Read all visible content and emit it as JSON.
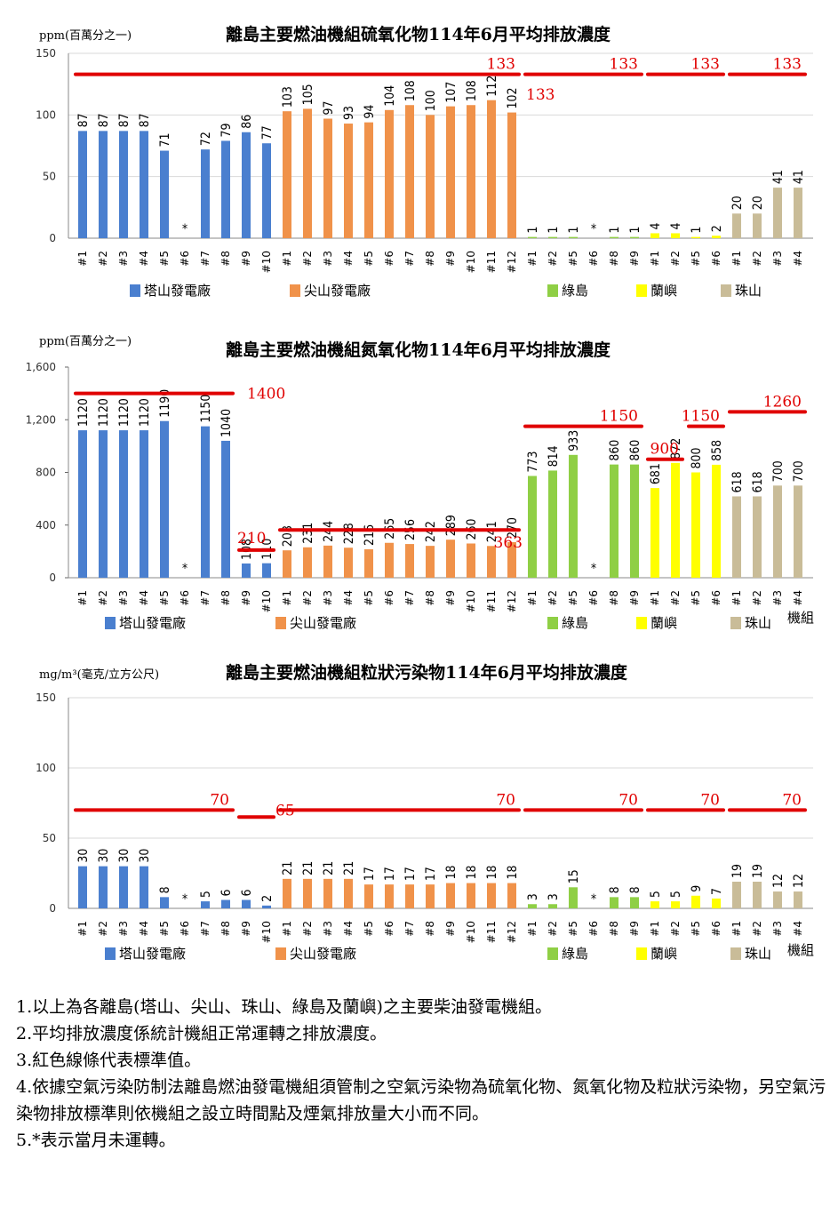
{
  "colors": {
    "tashan": "#4a7fcf",
    "jianshan": "#f0924a",
    "lyudao": "#8fcf45",
    "lanyu": "#ffff00",
    "zhushan": "#c9bc98",
    "limit": "#e00000"
  },
  "legend": [
    {
      "name": "塔山發電廠",
      "color": "#4a7fcf"
    },
    {
      "name": "尖山發電廠",
      "color": "#f0924a"
    },
    {
      "name": "綠島",
      "color": "#8fcf45"
    },
    {
      "name": "蘭嶼",
      "color": "#ffff00"
    },
    {
      "name": "珠山",
      "color": "#c9bc98"
    }
  ],
  "chart_data": [
    {
      "type": "bar",
      "title": "離島主要燃油機組硫氧化物114年6月平均排放濃度",
      "unit": "ppm(百萬分之一)",
      "xlabel": "",
      "ylim": [
        0,
        150
      ],
      "yticks": [
        "0",
        "50",
        "100",
        "150"
      ],
      "grid": true,
      "categories": [
        "#1",
        "#2",
        "#3",
        "#4",
        "#5",
        "#6",
        "#7",
        "#8",
        "#9",
        "#10",
        "#1",
        "#2",
        "#3",
        "#4",
        "#5",
        "#6",
        "#7",
        "#8",
        "#9",
        "#10",
        "#11",
        "#12",
        "#1",
        "#2",
        "#5",
        "#6",
        "#8",
        "#9",
        "#1",
        "#2",
        "#5",
        "#6",
        "#1",
        "#2",
        "#3",
        "#4"
      ],
      "groups": [
        "塔山發電廠",
        "塔山發電廠",
        "塔山發電廠",
        "塔山發電廠",
        "塔山發電廠",
        "塔山發電廠",
        "塔山發電廠",
        "塔山發電廠",
        "塔山發電廠",
        "塔山發電廠",
        "尖山發電廠",
        "尖山發電廠",
        "尖山發電廠",
        "尖山發電廠",
        "尖山發電廠",
        "尖山發電廠",
        "尖山發電廠",
        "尖山發電廠",
        "尖山發電廠",
        "尖山發電廠",
        "尖山發電廠",
        "尖山發電廠",
        "綠島",
        "綠島",
        "綠島",
        "綠島",
        "綠島",
        "綠島",
        "蘭嶼",
        "蘭嶼",
        "蘭嶼",
        "蘭嶼",
        "珠山",
        "珠山",
        "珠山",
        "珠山"
      ],
      "values": [
        87,
        87,
        87,
        87,
        71,
        null,
        72,
        79,
        86,
        77,
        103,
        105,
        97,
        93,
        94,
        104,
        108,
        100,
        107,
        108,
        112,
        102,
        1,
        1,
        1,
        null,
        1,
        1,
        4,
        4,
        1,
        2,
        20,
        20,
        41,
        41
      ],
      "value_labels": [
        "87",
        "87",
        "87",
        "87",
        "71",
        "*",
        "72",
        "79",
        "86",
        "77",
        "103",
        "105",
        "97",
        "93",
        "94",
        "104",
        "108",
        "100",
        "107",
        "108",
        "112",
        "102",
        "1",
        "1",
        "1",
        "*",
        "1",
        "1",
        "4",
        "4",
        "1",
        "2",
        "20",
        "20",
        "41",
        "41"
      ],
      "limits": [
        {
          "from": 0,
          "to": 21,
          "value": 133,
          "label": "133"
        },
        {
          "from": 22,
          "to": 27,
          "value": 133,
          "label": "133"
        },
        {
          "from": 28,
          "to": 31,
          "value": 133,
          "label": "133"
        },
        {
          "from": 32,
          "to": 35,
          "value": 133,
          "label": "133"
        }
      ],
      "extra_limit_label": "133"
    },
    {
      "type": "bar",
      "title": "離島主要燃油機組氮氧化物114年6月平均排放濃度",
      "unit": "ppm(百萬分之一)",
      "xlabel": "機組",
      "ylim": [
        0,
        1600
      ],
      "yticks": [
        "0",
        "400",
        "800",
        "1,200",
        "1,600"
      ],
      "grid": false,
      "categories": [
        "#1",
        "#2",
        "#3",
        "#4",
        "#5",
        "#6",
        "#7",
        "#8",
        "#9",
        "#10",
        "#1",
        "#2",
        "#3",
        "#4",
        "#5",
        "#6",
        "#7",
        "#8",
        "#9",
        "#10",
        "#11",
        "#12",
        "#1",
        "#2",
        "#5",
        "#6",
        "#8",
        "#9",
        "#1",
        "#2",
        "#5",
        "#6",
        "#1",
        "#2",
        "#3",
        "#4"
      ],
      "groups": [
        "塔山發電廠",
        "塔山發電廠",
        "塔山發電廠",
        "塔山發電廠",
        "塔山發電廠",
        "塔山發電廠",
        "塔山發電廠",
        "塔山發電廠",
        "塔山發電廠",
        "塔山發電廠",
        "尖山發電廠",
        "尖山發電廠",
        "尖山發電廠",
        "尖山發電廠",
        "尖山發電廠",
        "尖山發電廠",
        "尖山發電廠",
        "尖山發電廠",
        "尖山發電廠",
        "尖山發電廠",
        "尖山發電廠",
        "尖山發電廠",
        "綠島",
        "綠島",
        "綠島",
        "綠島",
        "綠島",
        "綠島",
        "蘭嶼",
        "蘭嶼",
        "蘭嶼",
        "蘭嶼",
        "珠山",
        "珠山",
        "珠山",
        "珠山"
      ],
      "values": [
        1120,
        1120,
        1120,
        1120,
        1190,
        null,
        1150,
        1040,
        108,
        110,
        208,
        231,
        244,
        228,
        216,
        265,
        256,
        242,
        289,
        260,
        241,
        270,
        773,
        814,
        933,
        null,
        860,
        860,
        681,
        872,
        800,
        858,
        618,
        618,
        700,
        700
      ],
      "value_labels": [
        "1120",
        "1120",
        "1120",
        "1120",
        "1190",
        "*",
        "1150",
        "1040",
        "108",
        "110",
        "208",
        "231",
        "244",
        "228",
        "216",
        "265",
        "256",
        "242",
        "289",
        "260",
        "241",
        "270",
        "773",
        "814",
        "933",
        "*",
        "860",
        "860",
        "681",
        "872",
        "800",
        "858",
        "618",
        "618",
        "700",
        "700"
      ],
      "limits": [
        {
          "from": 0,
          "to": 7,
          "value": 1400,
          "label": "1400"
        },
        {
          "from": 8,
          "to": 9,
          "value": 210,
          "label": "210"
        },
        {
          "from": 10,
          "to": 21,
          "value": 363,
          "label": "363"
        },
        {
          "from": 22,
          "to": 27,
          "value": 1150,
          "label": "1150"
        },
        {
          "from": 28,
          "to": 29,
          "value": 900,
          "label": "900"
        },
        {
          "from": 30,
          "to": 31,
          "value": 1150,
          "label": "1150"
        },
        {
          "from": 32,
          "to": 35,
          "value": 1260,
          "label": "1260"
        }
      ]
    },
    {
      "type": "bar",
      "title": "離島主要燃油機組粒狀污染物114年6月平均排放濃度",
      "unit": "mg/m³(毫克/立方公尺)",
      "xlabel": "機組",
      "ylim": [
        0,
        150
      ],
      "yticks": [
        "0",
        "50",
        "100",
        "150"
      ],
      "grid": true,
      "categories": [
        "#1",
        "#2",
        "#3",
        "#4",
        "#5",
        "#6",
        "#7",
        "#8",
        "#9",
        "#10",
        "#1",
        "#2",
        "#3",
        "#4",
        "#5",
        "#6",
        "#7",
        "#8",
        "#9",
        "#10",
        "#11",
        "#12",
        "#1",
        "#2",
        "#5",
        "#6",
        "#8",
        "#9",
        "#1",
        "#2",
        "#5",
        "#6",
        "#1",
        "#2",
        "#3",
        "#4"
      ],
      "groups": [
        "塔山發電廠",
        "塔山發電廠",
        "塔山發電廠",
        "塔山發電廠",
        "塔山發電廠",
        "塔山發電廠",
        "塔山發電廠",
        "塔山發電廠",
        "塔山發電廠",
        "塔山發電廠",
        "尖山發電廠",
        "尖山發電廠",
        "尖山發電廠",
        "尖山發電廠",
        "尖山發電廠",
        "尖山發電廠",
        "尖山發電廠",
        "尖山發電廠",
        "尖山發電廠",
        "尖山發電廠",
        "尖山發電廠",
        "尖山發電廠",
        "綠島",
        "綠島",
        "綠島",
        "綠島",
        "綠島",
        "綠島",
        "蘭嶼",
        "蘭嶼",
        "蘭嶼",
        "蘭嶼",
        "珠山",
        "珠山",
        "珠山",
        "珠山"
      ],
      "values": [
        30,
        30,
        30,
        30,
        8,
        null,
        5,
        6,
        6,
        2,
        21,
        21,
        21,
        21,
        17,
        17,
        17,
        17,
        18,
        18,
        18,
        18,
        3,
        3,
        15,
        null,
        8,
        8,
        5,
        5,
        9,
        7,
        19,
        19,
        12,
        12
      ],
      "value_labels": [
        "30",
        "30",
        "30",
        "30",
        "8",
        "*",
        "5",
        "6",
        "6",
        "2",
        "21",
        "21",
        "21",
        "21",
        "17",
        "17",
        "17",
        "17",
        "18",
        "18",
        "18",
        "18",
        "3",
        "3",
        "15",
        "*",
        "8",
        "8",
        "5",
        "5",
        "9",
        "7",
        "19",
        "19",
        "12",
        "12"
      ],
      "limits": [
        {
          "from": 0,
          "to": 7,
          "value": 70,
          "label": "70"
        },
        {
          "from": 8,
          "to": 9,
          "value": 65,
          "label": "65"
        },
        {
          "from": 10,
          "to": 21,
          "value": 70,
          "label": "70"
        },
        {
          "from": 22,
          "to": 27,
          "value": 70,
          "label": "70"
        },
        {
          "from": 28,
          "to": 31,
          "value": 70,
          "label": "70"
        },
        {
          "from": 32,
          "to": 35,
          "value": 70,
          "label": "70"
        }
      ]
    }
  ],
  "notes": [
    "1.以上為各離島(塔山、尖山、珠山、綠島及蘭嶼)之主要柴油發電機組。",
    "2.平均排放濃度係統計機組正常運轉之排放濃度。",
    "3.紅色線條代表標準值。",
    "4.依據空氣污染防制法離島燃油發電機組須管制之空氣污染物為硫氧化物、氮氧化物及粒狀污染物，另空氣污染物排放標準則依機組之設立時間點及煙氣排放量大小而不同。",
    "5.*表示當月未運轉。"
  ]
}
